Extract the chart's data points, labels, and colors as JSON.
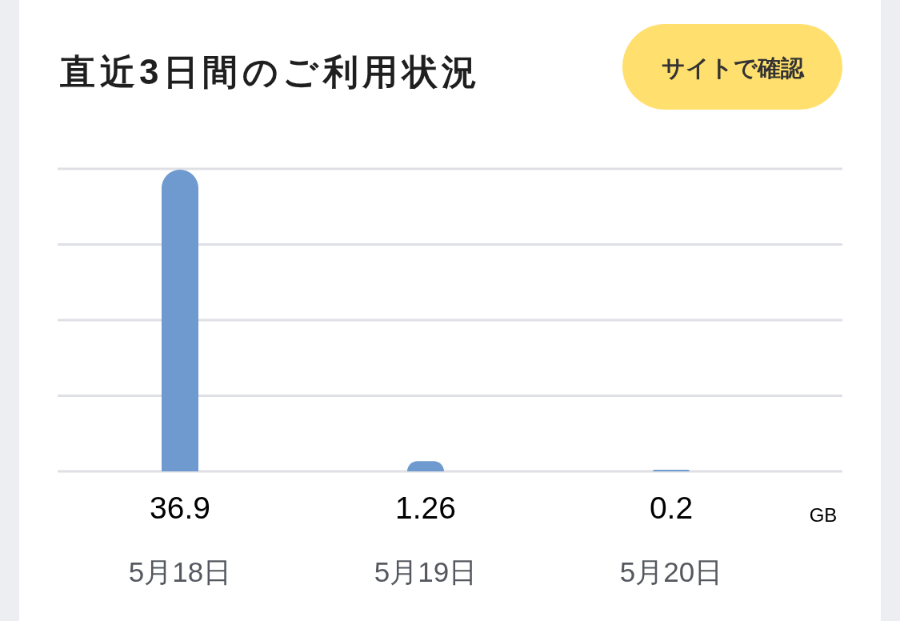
{
  "chart_data": {
    "type": "bar",
    "title": "直近3日間のご利用状況",
    "categories": [
      "5月18日",
      "5月19日",
      "5月20日"
    ],
    "values": [
      36.9,
      1.26,
      0.2
    ],
    "color": "#6f9acf",
    "annotations": [
      "サイトで確認",
      "GB"
    ],
    "ylim": [
      0,
      37
    ],
    "yticks": [
      {
        "value": 0,
        "label": null
      },
      {
        "value": 9.25,
        "label": null
      },
      {
        "value": 18.5,
        "label": null
      },
      {
        "value": 27.75,
        "label": null
      },
      {
        "value": 37,
        "label": null
      }
    ],
    "grid": "y",
    "tick_labels": "x",
    "data_labels": true
  }
}
